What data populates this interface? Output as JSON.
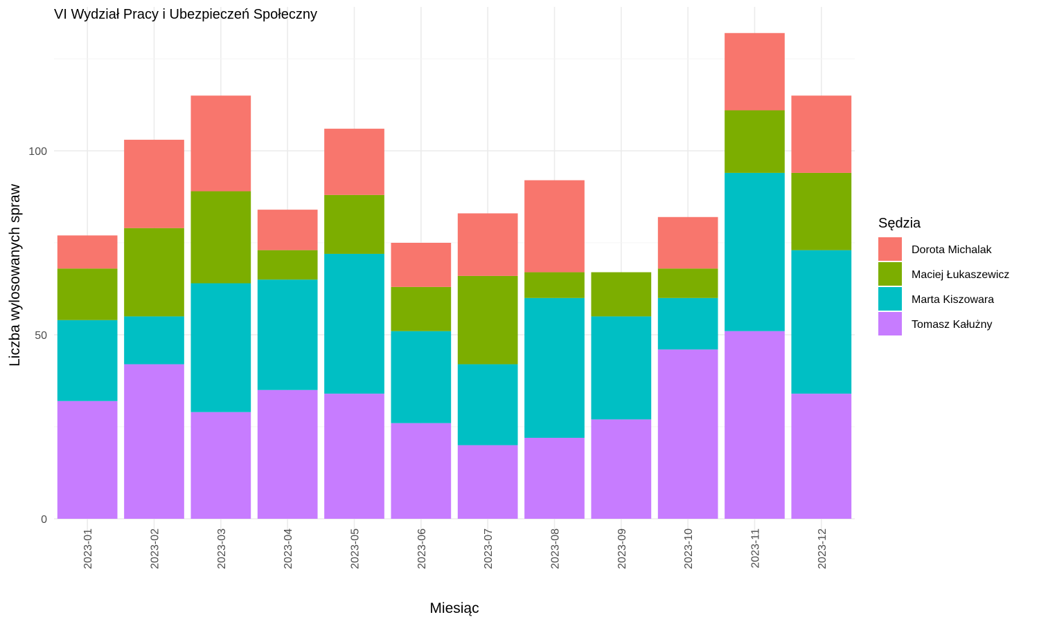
{
  "chart_data": {
    "type": "bar",
    "stacked": true,
    "title": "VI Wydział Pracy i Ubezpieczeń Społeczny",
    "xlabel": "Miesiąc",
    "ylabel": "Liczba wylosowanych spraw",
    "ylim": [
      0,
      137
    ],
    "yticks": [
      0,
      50,
      100
    ],
    "grid": true,
    "legend": {
      "title": "Sędzia",
      "position": "right"
    },
    "categories": [
      "2023-01",
      "2023-02",
      "2023-03",
      "2023-04",
      "2023-05",
      "2023-06",
      "2023-07",
      "2023-08",
      "2023-09",
      "2023-10",
      "2023-11",
      "2023-12"
    ],
    "series": [
      {
        "name": "Tomasz Kałużny",
        "color": "#C77CFF",
        "values": [
          32,
          42,
          29,
          35,
          34,
          26,
          20,
          22,
          27,
          46,
          51,
          34
        ]
      },
      {
        "name": "Marta Kiszowara",
        "color": "#00BFC4",
        "values": [
          22,
          13,
          35,
          30,
          38,
          25,
          22,
          38,
          28,
          14,
          43,
          39
        ]
      },
      {
        "name": "Maciej Łukaszewicz",
        "color": "#7CAE00",
        "values": [
          14,
          24,
          25,
          8,
          16,
          12,
          24,
          7,
          12,
          8,
          17,
          21
        ]
      },
      {
        "name": "Dorota Michalak",
        "color": "#F8766D",
        "values": [
          9,
          24,
          26,
          11,
          18,
          12,
          17,
          25,
          0,
          14,
          21,
          21
        ]
      }
    ],
    "legend_order": [
      "Dorota Michalak",
      "Maciej Łukaszewicz",
      "Marta Kiszowara",
      "Tomasz Kałużny"
    ]
  }
}
